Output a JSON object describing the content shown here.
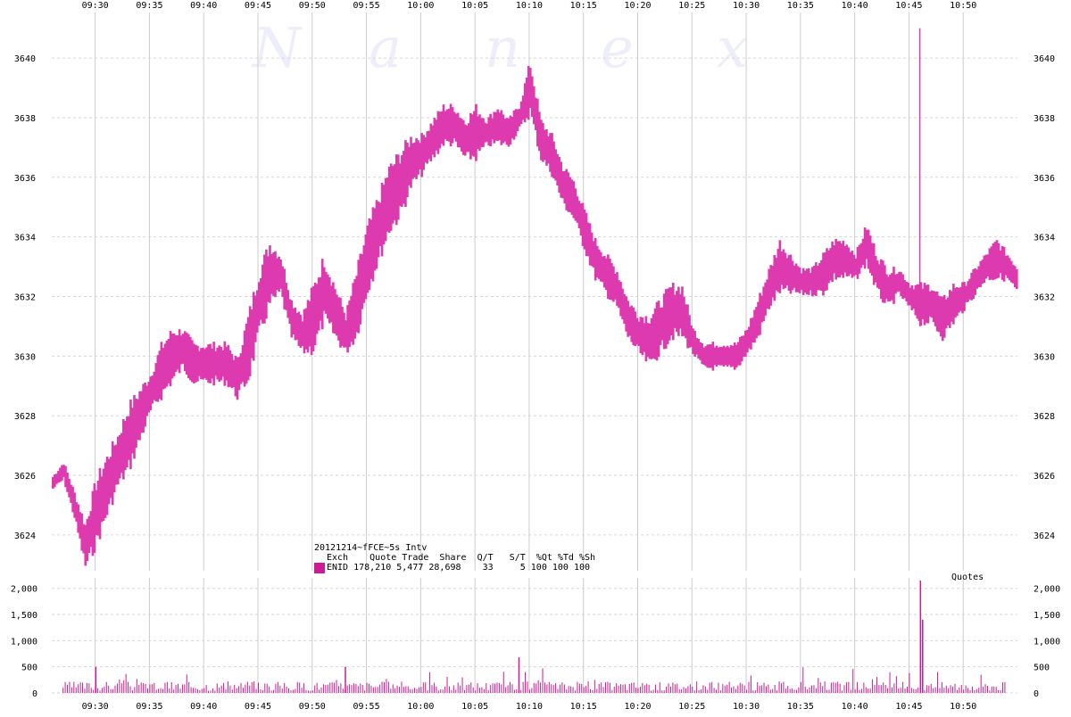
{
  "watermark": "N a n e x",
  "legend": {
    "title": "20121214~fFCE~5s Intv",
    "header": "Exch    Quote Trade  Share  Q/T   S/T  %Qt %Td %Sh",
    "row": "ENID 178,210 5,477 28,698    33     5 100 100 100"
  },
  "quotes_label": "Quotes",
  "chart_data": [
    {
      "type": "line",
      "title": "",
      "xlabel": "",
      "ylabel": "",
      "x_ticks": [
        "09:30",
        "09:35",
        "09:40",
        "09:45",
        "09:50",
        "09:55",
        "10:00",
        "10:05",
        "10:10",
        "10:15",
        "10:20",
        "10:25",
        "10:30",
        "10:35",
        "10:40",
        "10:45",
        "10:50"
      ],
      "y_ticks": [
        3624,
        3626,
        3628,
        3630,
        3632,
        3634,
        3636,
        3638,
        3640
      ],
      "ylim": [
        3622.8,
        3641.2
      ],
      "xlim": [
        "09:26",
        "10:55"
      ],
      "grid": true,
      "color": "#dd3ab0",
      "series": [
        {
          "x": [
            "09:26",
            "09:27",
            "09:28",
            "09:29",
            "09:30",
            "09:31",
            "09:32",
            "09:33",
            "09:34",
            "09:35",
            "09:36",
            "09:37",
            "09:38",
            "09:39",
            "09:40",
            "09:41",
            "09:42",
            "09:43",
            "09:44",
            "09:45",
            "09:46",
            "09:47",
            "09:48",
            "09:49",
            "09:50",
            "09:51",
            "09:52",
            "09:53",
            "09:54",
            "09:55",
            "09:56",
            "09:57",
            "09:58",
            "09:59",
            "10:00",
            "10:01",
            "10:02",
            "10:03",
            "10:04",
            "10:05",
            "10:06",
            "10:07",
            "10:08",
            "10:09",
            "10:10",
            "10:11",
            "10:12",
            "10:13",
            "10:14",
            "10:15",
            "10:16",
            "10:17",
            "10:18",
            "10:19",
            "10:20",
            "10:21",
            "10:22",
            "10:23",
            "10:24",
            "10:25",
            "10:26",
            "10:27",
            "10:28",
            "10:29",
            "10:30",
            "10:31",
            "10:32",
            "10:33",
            "10:34",
            "10:35",
            "10:36",
            "10:37",
            "10:38",
            "10:39",
            "10:40",
            "10:41",
            "10:42",
            "10:43",
            "10:44",
            "10:45",
            "10:46",
            "10:47",
            "10:48",
            "10:49",
            "10:50",
            "10:51",
            "10:52",
            "10:53",
            "10:54",
            "10:55"
          ],
          "high": [
            3626.0,
            3626.5,
            3625.5,
            3624.5,
            3626.0,
            3626.8,
            3627.5,
            3628.5,
            3629.0,
            3629.5,
            3630.5,
            3631.0,
            3631.0,
            3630.5,
            3630.5,
            3630.5,
            3630.5,
            3630.0,
            3631.5,
            3633.0,
            3634.0,
            3633.5,
            3632.0,
            3631.5,
            3632.5,
            3633.5,
            3632.5,
            3631.5,
            3633.0,
            3634.5,
            3635.5,
            3636.5,
            3637.0,
            3637.5,
            3637.5,
            3638.0,
            3638.5,
            3638.5,
            3638.0,
            3638.5,
            3638.0,
            3638.5,
            3638.0,
            3638.5,
            3640.0,
            3638.0,
            3637.5,
            3636.5,
            3636.0,
            3635.0,
            3634.0,
            3633.5,
            3633.0,
            3632.0,
            3631.5,
            3631.5,
            3632.0,
            3632.5,
            3632.5,
            3631.0,
            3630.5,
            3630.5,
            3630.5,
            3630.5,
            3631.0,
            3632.0,
            3633.0,
            3634.0,
            3633.5,
            3633.0,
            3633.0,
            3633.5,
            3634.0,
            3634.0,
            3633.5,
            3634.5,
            3633.5,
            3633.0,
            3633.0,
            3632.5,
            3632.5,
            3632.5,
            3632.0,
            3632.5,
            3632.5,
            3633.0,
            3633.5,
            3634.0,
            3633.5,
            3633.0
          ],
          "low": [
            3625.5,
            3625.8,
            3624.5,
            3622.8,
            3623.5,
            3624.5,
            3625.5,
            3626.0,
            3627.0,
            3628.0,
            3628.5,
            3629.0,
            3629.5,
            3629.0,
            3629.0,
            3629.0,
            3629.0,
            3628.5,
            3629.0,
            3630.5,
            3631.5,
            3632.0,
            3630.5,
            3630.0,
            3630.0,
            3631.0,
            3630.5,
            3630.0,
            3630.5,
            3632.0,
            3633.0,
            3634.0,
            3634.5,
            3635.5,
            3636.0,
            3636.5,
            3637.0,
            3637.0,
            3636.5,
            3636.5,
            3637.0,
            3637.0,
            3637.0,
            3637.5,
            3638.0,
            3636.5,
            3636.0,
            3635.0,
            3634.5,
            3633.5,
            3632.5,
            3632.0,
            3631.5,
            3630.5,
            3630.0,
            3629.5,
            3630.0,
            3630.5,
            3630.5,
            3630.0,
            3629.5,
            3629.5,
            3629.5,
            3629.5,
            3630.0,
            3630.5,
            3631.5,
            3632.0,
            3632.0,
            3632.0,
            3632.0,
            3632.0,
            3632.5,
            3632.5,
            3632.5,
            3633.0,
            3632.0,
            3631.5,
            3632.0,
            3631.5,
            3631.0,
            3631.0,
            3630.5,
            3631.0,
            3631.5,
            3632.0,
            3632.5,
            3632.5,
            3632.5,
            3632.0
          ]
        }
      ]
    },
    {
      "type": "bar",
      "title": "Quotes",
      "y_ticks": [
        0,
        500,
        1000,
        1500,
        2000
      ],
      "y_tick_labels": [
        "0",
        "500",
        "1,000",
        "1,500",
        "2,000"
      ],
      "ylim": [
        0,
        2200
      ],
      "color": "#cc1c95",
      "spikes": [
        {
          "x": "09:30",
          "value": 500
        },
        {
          "x": "09:53",
          "value": 500
        },
        {
          "x": "10:09",
          "value": 680
        },
        {
          "x": "10:46",
          "value": 2150
        },
        {
          "x": "10:46.2",
          "value": 1400
        }
      ]
    }
  ]
}
